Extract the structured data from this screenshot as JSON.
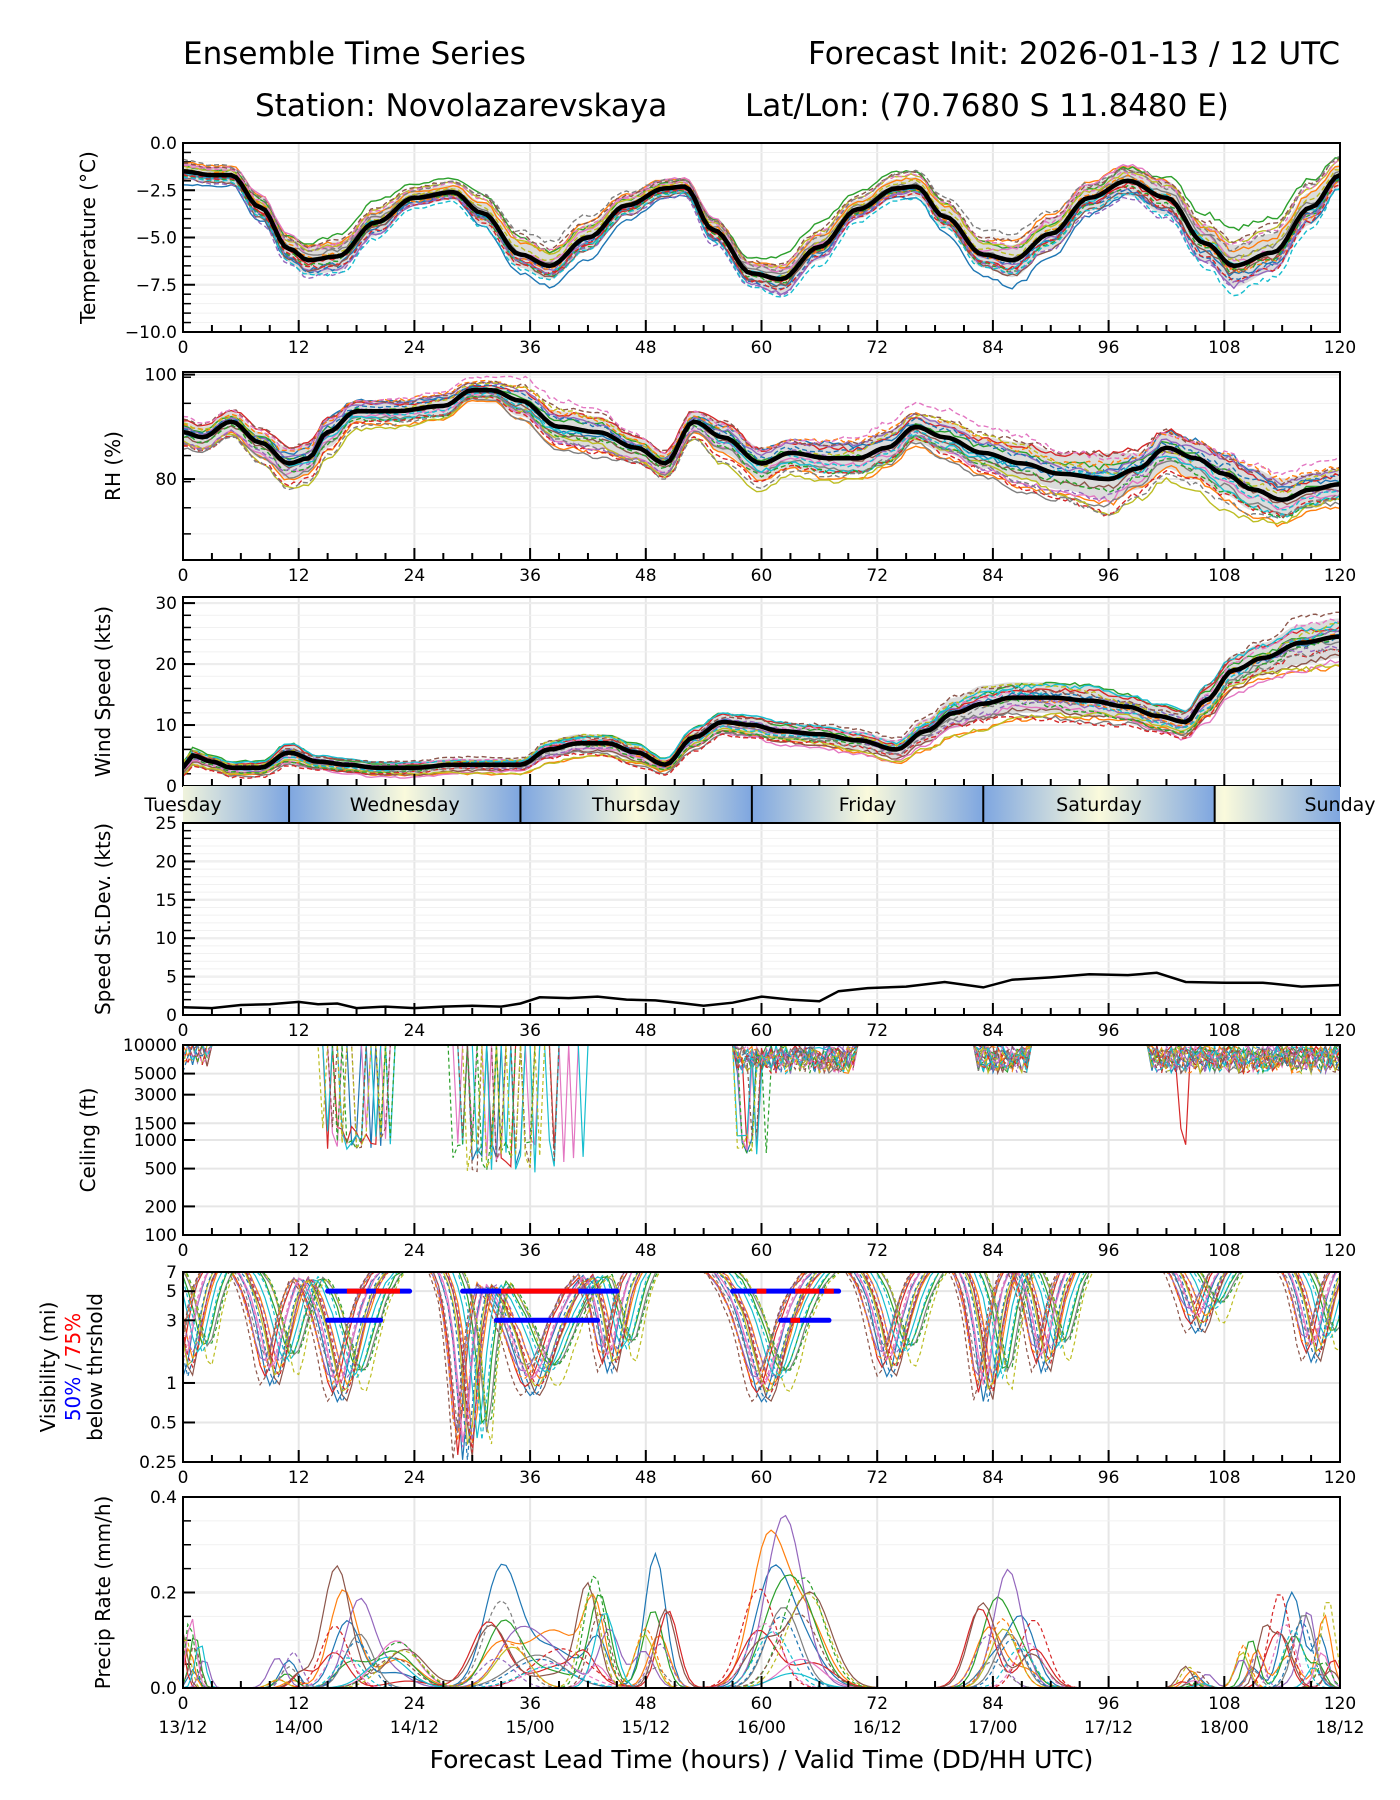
{
  "header": {
    "title": "Ensemble Time Series",
    "init": "Forecast Init: 2026-01-13 / 12 UTC",
    "station": "Station: Novolazarevskaya",
    "latlon": "Lat/Lon: (70.7680 S 11.8480 E)"
  },
  "chart_data": [
    {
      "type": "line",
      "id": "temperature",
      "ylabel": "Temperature (°C)",
      "ylim": [
        -10.0,
        0.0
      ],
      "yticks": [
        "0.0",
        "−2.5",
        "−5.0",
        "−7.5",
        "−10.0"
      ],
      "ytick_values": [
        0.0,
        -2.5,
        -5.0,
        -7.5,
        -10.0
      ],
      "x": [
        0,
        3,
        5,
        8,
        11,
        13,
        16,
        20,
        24,
        28,
        31,
        35,
        38,
        42,
        46,
        50,
        52,
        55,
        59,
        62,
        66,
        70,
        74,
        76,
        79,
        83,
        86,
        90,
        94,
        98,
        102,
        106,
        109,
        113,
        117,
        120
      ],
      "mean": [
        -1.5,
        -1.7,
        -1.7,
        -3.4,
        -5.6,
        -6.2,
        -6.0,
        -4.2,
        -2.9,
        -2.6,
        -3.7,
        -5.9,
        -6.5,
        -5.0,
        -3.3,
        -2.4,
        -2.3,
        -4.6,
        -6.9,
        -7.2,
        -5.5,
        -3.5,
        -2.4,
        -2.3,
        -3.9,
        -5.9,
        -6.2,
        -4.8,
        -2.9,
        -2.0,
        -2.9,
        -5.3,
        -6.5,
        -5.8,
        -3.4,
        -1.7
      ],
      "spread_lo": [
        -1.9,
        -2.1,
        -2.1,
        -4.0,
        -6.3,
        -7.0,
        -6.8,
        -4.9,
        -3.3,
        -3.0,
        -4.3,
        -6.6,
        -7.2,
        -5.7,
        -3.8,
        -2.8,
        -2.7,
        -5.2,
        -7.5,
        -8.0,
        -6.2,
        -4.0,
        -2.9,
        -2.8,
        -4.5,
        -6.6,
        -7.1,
        -5.6,
        -3.6,
        -2.8,
        -3.8,
        -6.3,
        -7.6,
        -6.8,
        -4.3,
        -2.3
      ],
      "spread_hi": [
        -1.1,
        -1.3,
        -1.3,
        -2.8,
        -5.0,
        -5.5,
        -5.2,
        -3.6,
        -2.5,
        -2.2,
        -3.1,
        -5.2,
        -5.8,
        -4.3,
        -2.8,
        -2.0,
        -1.9,
        -4.0,
        -6.3,
        -6.5,
        -4.8,
        -3.0,
        -1.9,
        -1.8,
        -3.3,
        -5.2,
        -5.4,
        -4.0,
        -2.2,
        -1.3,
        -2.0,
        -4.3,
        -5.4,
        -4.8,
        -2.6,
        -1.1
      ],
      "xticks": [
        "0",
        "12",
        "24",
        "36",
        "48",
        "60",
        "72",
        "84",
        "96",
        "108",
        "120"
      ]
    },
    {
      "type": "line",
      "id": "rh",
      "ylabel": "RH (%)",
      "ylim": [
        64.5,
        100.5
      ],
      "yticks": [
        "100",
        "80"
      ],
      "ytick_values": [
        100,
        80
      ],
      "x": [
        0,
        2,
        5,
        8,
        11,
        13,
        15,
        18,
        22,
        27,
        30,
        32,
        35,
        39,
        43,
        47,
        50,
        53,
        56,
        60,
        63,
        67,
        70,
        73,
        76,
        79,
        83,
        87,
        91,
        96,
        99,
        102,
        105,
        108,
        111,
        114,
        117,
        120
      ],
      "mean": [
        89,
        88,
        91,
        87,
        83,
        84,
        89,
        93,
        93,
        94,
        97,
        97,
        95,
        90,
        89,
        86,
        83,
        91,
        88,
        83,
        85,
        84,
        84,
        86,
        90,
        88,
        85,
        83,
        81,
        80,
        82,
        86,
        84,
        81,
        78,
        76,
        78,
        79
      ],
      "spread_lo": [
        87,
        86,
        89,
        84,
        80,
        81,
        86,
        91,
        91,
        92,
        95,
        95,
        92,
        87,
        86,
        84,
        81,
        89,
        85,
        80,
        82,
        81,
        81,
        83,
        87,
        85,
        82,
        80,
        78,
        76,
        78,
        82,
        80,
        77,
        74,
        73,
        75,
        76
      ],
      "spread_hi": [
        91,
        90,
        93,
        89,
        86,
        87,
        92,
        95,
        95,
        96,
        98,
        98,
        97,
        93,
        92,
        88,
        85,
        93,
        91,
        86,
        87,
        87,
        87,
        89,
        92,
        91,
        88,
        87,
        85,
        85,
        85,
        89,
        87,
        85,
        82,
        80,
        81,
        82
      ],
      "xticks": [
        "0",
        "12",
        "24",
        "36",
        "48",
        "60",
        "72",
        "84",
        "96",
        "108",
        "120"
      ]
    },
    {
      "type": "line",
      "id": "wind_speed",
      "ylabel": "Wind Speed (kts)",
      "ylim": [
        0,
        31
      ],
      "yticks": [
        "30",
        "20",
        "10",
        "0"
      ],
      "ytick_values": [
        30,
        20,
        10,
        0
      ],
      "x": [
        0,
        1,
        3,
        5,
        8,
        11,
        14,
        17,
        20,
        24,
        28,
        32,
        35,
        38,
        41,
        44,
        47,
        50,
        53,
        56,
        59,
        62,
        66,
        70,
        74,
        77,
        80,
        83,
        86,
        90,
        94,
        98,
        101,
        104,
        106,
        109,
        112,
        116,
        120
      ],
      "mean": [
        3,
        5,
        4,
        3,
        3,
        5.5,
        4,
        3.5,
        3,
        3,
        3.5,
        3.5,
        3.5,
        6,
        7,
        7,
        5.5,
        3.5,
        8,
        10.5,
        10,
        9,
        8.5,
        7.5,
        6,
        9,
        12,
        13.5,
        14.5,
        14.5,
        14,
        13,
        11.5,
        10.5,
        14,
        19,
        21,
        23.5,
        24.5
      ],
      "spread_lo": [
        2,
        3.5,
        3,
        2,
        2,
        4,
        3,
        2.5,
        2,
        2,
        2.5,
        2.5,
        2.5,
        4.5,
        5.5,
        5.5,
        4,
        2.5,
        6.5,
        9,
        8.5,
        7.5,
        7,
        6,
        4.5,
        7,
        9.5,
        11,
        12,
        12,
        11.5,
        11,
        9.5,
        8.5,
        11.5,
        16.5,
        18.5,
        20,
        21
      ],
      "spread_hi": [
        4,
        6,
        5,
        4,
        4,
        7,
        5,
        4.5,
        4,
        4,
        4.5,
        4.5,
        4.5,
        7.5,
        8.5,
        8.5,
        7,
        4.5,
        9.5,
        12,
        11.5,
        10.5,
        10,
        9,
        7.5,
        11,
        14.5,
        16.5,
        17,
        17,
        16.5,
        15,
        13.5,
        12.5,
        16.5,
        21.5,
        23.5,
        26.5,
        27.5
      ],
      "xticks": [
        "0",
        "12",
        "24",
        "36",
        "48",
        "60",
        "72",
        "84",
        "96",
        "108",
        "120"
      ]
    },
    {
      "type": "line",
      "id": "speed_stdev",
      "ylabel": "Speed St.Dev. (kts)",
      "ylim": [
        0,
        25
      ],
      "yticks": [
        "25",
        "20",
        "15",
        "10",
        "5",
        "0"
      ],
      "ytick_values": [
        25,
        20,
        15,
        10,
        5,
        0
      ],
      "x": [
        0,
        3,
        6,
        9,
        12,
        14,
        16,
        18,
        21,
        24,
        27,
        30,
        33,
        35,
        37,
        40,
        43,
        46,
        49,
        52,
        54,
        57,
        60,
        63,
        66,
        68,
        71,
        75,
        79,
        83,
        86,
        90,
        94,
        98,
        101,
        104,
        108,
        112,
        116,
        120
      ],
      "values": [
        1.0,
        0.9,
        1.3,
        1.4,
        1.7,
        1.4,
        1.5,
        0.9,
        1.1,
        0.9,
        1.1,
        1.2,
        1.1,
        1.5,
        2.3,
        2.2,
        2.4,
        2.0,
        1.9,
        1.5,
        1.2,
        1.6,
        2.4,
        2.0,
        1.8,
        3.1,
        3.5,
        3.7,
        4.3,
        3.6,
        4.6,
        4.9,
        5.3,
        5.2,
        5.5,
        4.3,
        4.2,
        4.2,
        3.7,
        3.9
      ],
      "xticks": [
        "0",
        "12",
        "24",
        "36",
        "48",
        "60",
        "72",
        "84",
        "96",
        "108",
        "120"
      ]
    },
    {
      "type": "line",
      "id": "ceiling",
      "ylabel": "Ceiling (ft)",
      "yscale": "log",
      "ylim": [
        100,
        10000
      ],
      "yticks": [
        "10000",
        "5000",
        "3000",
        "1500",
        "1000",
        "500",
        "200",
        "100"
      ],
      "ytick_values": [
        10000,
        5000,
        3000,
        1500,
        1000,
        500,
        200,
        100
      ],
      "notes": "Ensemble member ceilings; low-ceiling episodes near 14-22h, 28-42h, 57-60h; brief drop ~103h",
      "xticks": [
        "0",
        "12",
        "24",
        "36",
        "48",
        "60",
        "72",
        "84",
        "96",
        "108",
        "120"
      ]
    },
    {
      "type": "line",
      "id": "visibility",
      "ylabel": "Visibility (mi)",
      "ylabel_50": "50%",
      "ylabel_sep": " / ",
      "ylabel_75": "75%",
      "ylabel_3": "below thrshold",
      "yscale": "log",
      "ylim": [
        0.25,
        7
      ],
      "yticks": [
        "7",
        "5",
        "3",
        "1",
        "0.5",
        "0.25"
      ],
      "ytick_values": [
        7,
        5,
        3,
        1,
        0.5,
        0.25
      ],
      "threshold_bars": [
        {
          "threshold": 5,
          "start": 15,
          "end": 23.5,
          "red": [
            [
              17,
              19
            ],
            [
              20,
              22.5
            ]
          ]
        },
        {
          "threshold": 3,
          "start": 15,
          "end": 20.5,
          "red": []
        },
        {
          "threshold": 5,
          "start": 29,
          "end": 45,
          "red": [
            [
              33,
              41
            ]
          ]
        },
        {
          "threshold": 3,
          "start": 32.5,
          "end": 43,
          "red": []
        },
        {
          "threshold": 5,
          "start": 57,
          "end": 68,
          "red": [
            [
              59.5,
              60.5
            ],
            [
              63.5,
              66
            ],
            [
              66.5,
              67.5
            ]
          ]
        },
        {
          "threshold": 3,
          "start": 62,
          "end": 67,
          "red": [
            [
              63,
              64
            ]
          ]
        }
      ],
      "xticks": [
        "0",
        "12",
        "24",
        "36",
        "48",
        "60",
        "72",
        "84",
        "96",
        "108",
        "120"
      ]
    },
    {
      "type": "line",
      "id": "precip_rate",
      "ylabel": "Precip Rate (mm/h)",
      "ylim": [
        0.0,
        0.4
      ],
      "yticks": [
        "0.4",
        "0.2",
        "0.0"
      ],
      "ytick_values": [
        0.4,
        0.2,
        0.0
      ],
      "notes": "Ensemble member precip peaks ~0.2 at 1h, ~0.28 at 17h, ~0.3 at 33h, ~0.32 at 49h, ~0.33 at 61h, ~0.3 at 84h, ~0.25 at 115h",
      "xticks": [
        "0",
        "12",
        "24",
        "36",
        "48",
        "60",
        "72",
        "84",
        "96",
        "108",
        "120"
      ],
      "xticks2": [
        "13/12",
        "14/00",
        "14/12",
        "15/00",
        "15/12",
        "16/00",
        "16/12",
        "17/00",
        "17/12",
        "18/00",
        "18/12"
      ],
      "xlabel": "Forecast Lead Time (hours) / Valid Time (DD/HH UTC)"
    }
  ],
  "days": [
    {
      "label": "Tuesday",
      "start": 0,
      "end": 11
    },
    {
      "label": "Wednesday",
      "start": 11,
      "end": 35
    },
    {
      "label": "Thursday",
      "start": 35,
      "end": 59
    },
    {
      "label": "Friday",
      "start": 59,
      "end": 83
    },
    {
      "label": "Saturday",
      "start": 83,
      "end": 107
    },
    {
      "label": "Sunday",
      "start": 107,
      "end": 120
    }
  ],
  "colors": {
    "mean": "#000000",
    "spread": "#d3d3d3",
    "grid": "#e6e6e6",
    "bar50": "#0000ff",
    "bar75": "#ff0000",
    "day_blue": "#7ea6e0",
    "day_cream": "#fafadc",
    "members": [
      "#1f77b4",
      "#ff7f0e",
      "#2ca02c",
      "#d62728",
      "#9467bd",
      "#8c564b",
      "#e377c2",
      "#7f7f7f",
      "#bcbd22",
      "#17becf"
    ]
  }
}
